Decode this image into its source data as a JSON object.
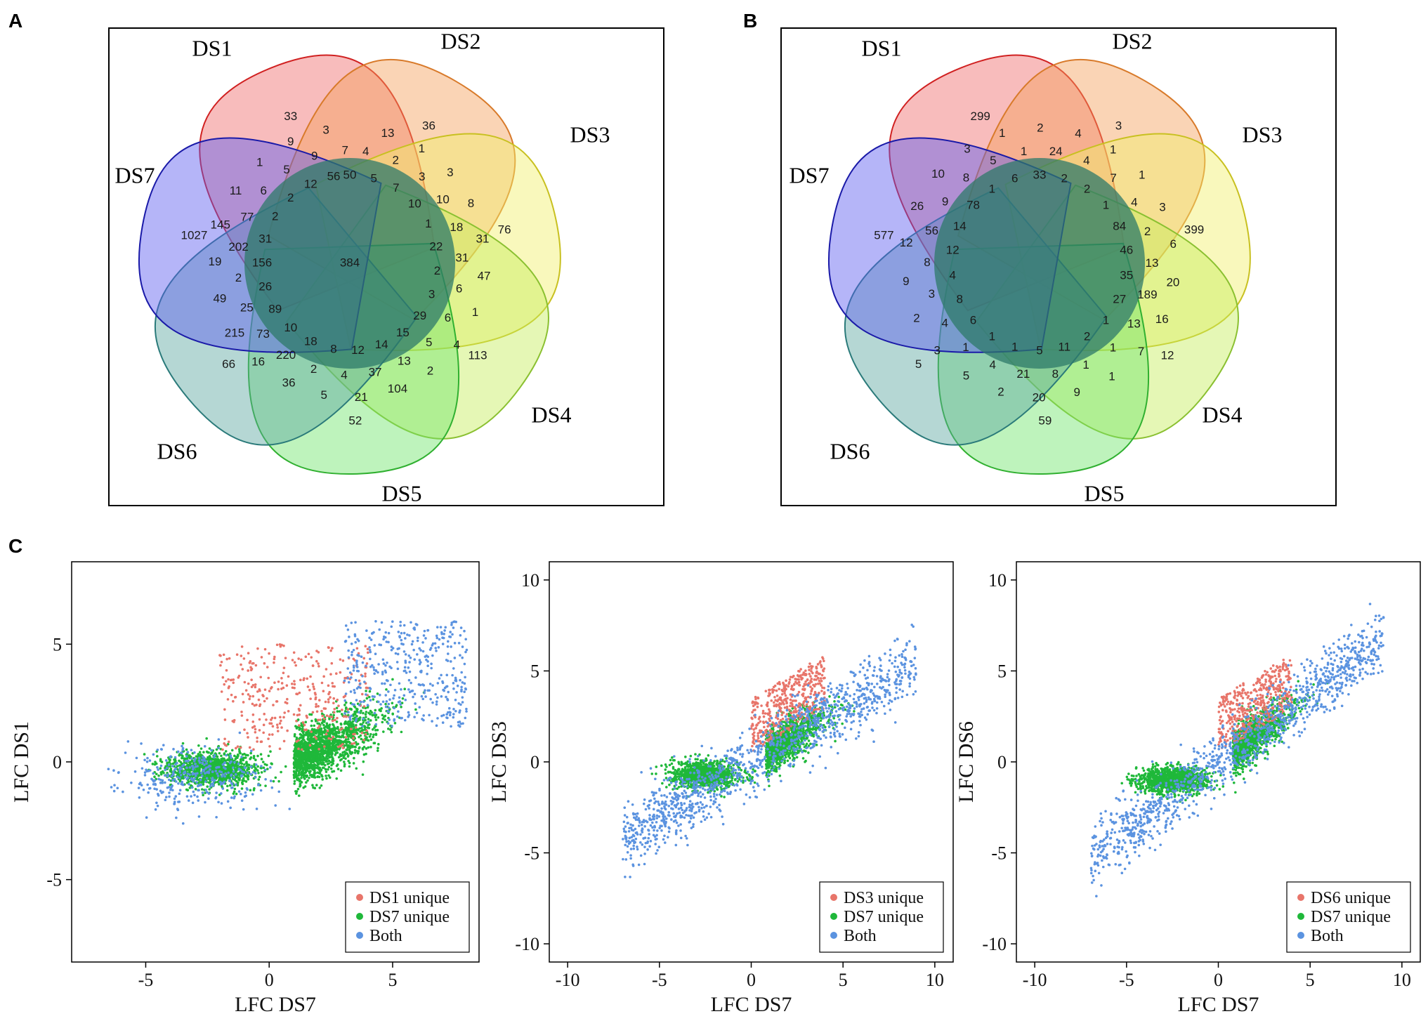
{
  "panels": {
    "a": "A",
    "b": "B",
    "c": "C"
  },
  "colors": {
    "DS1": "#f06a6a",
    "DS2": "#f5a05a",
    "DS3": "#f2f06a",
    "DS4": "#c6ee5a",
    "DS5": "#6ee46a",
    "DS6": "#5aa6a0",
    "DS7": "#5a5af0",
    "dotRed": "#e8756a",
    "dotGreen": "#1fb83a",
    "dotBlue": "#5b93e0"
  },
  "venn": [
    {
      "set_labels": [
        "DS1",
        "DS2",
        "DS3",
        "DS4",
        "DS5",
        "DS6",
        "DS7"
      ],
      "center": "384",
      "unique": [
        "33",
        "36",
        "76",
        "113",
        "52",
        "66",
        "1027"
      ],
      "inner": [
        "50",
        "4",
        "13",
        "5",
        "2",
        "1",
        "7",
        "3",
        "3",
        "10",
        "10",
        "8",
        "1",
        "18",
        "31",
        "22",
        "31",
        "47",
        "2",
        "6",
        "1",
        "3",
        "6",
        "4",
        "29",
        "5",
        "2",
        "15",
        "13",
        "104",
        "14",
        "37",
        "21",
        "12",
        "4",
        "5",
        "8",
        "2",
        "36",
        "18",
        "220",
        "16",
        "10",
        "73",
        "215",
        "89",
        "25",
        "49",
        "26",
        "2",
        "19",
        "156",
        "202",
        "145",
        "31",
        "77",
        "11",
        "2",
        "6",
        "1",
        "2",
        "5",
        "9",
        "12",
        "9",
        "3",
        "56",
        "7"
      ]
    },
    {
      "set_labels": [
        "DS1",
        "DS2",
        "DS3",
        "DS4",
        "DS5",
        "DS6",
        "DS7"
      ],
      "center": "",
      "unique": [
        "299",
        "3",
        "399",
        "12",
        "59",
        "5",
        "577"
      ],
      "inner": [
        "33",
        "24",
        "4",
        "2",
        "4",
        "1",
        "2",
        "7",
        "1",
        "1",
        "4",
        "3",
        "84",
        "2",
        "6",
        "46",
        "13",
        "20",
        "35",
        "189",
        "16",
        "27",
        "13",
        "7",
        "1",
        "1",
        "1",
        "2",
        "1",
        "9",
        "11",
        "8",
        "20",
        "5",
        "21",
        "2",
        "1",
        "4",
        "5",
        "1",
        "1",
        "3",
        "6",
        "4",
        "2",
        "8",
        "3",
        "9",
        "4",
        "8",
        "12",
        "12",
        "56",
        "26",
        "14",
        "9",
        "10",
        "78",
        "8",
        "3",
        "1",
        "5",
        "1",
        "6",
        "1",
        "2"
      ]
    }
  ],
  "chart_data": [
    {
      "type": "scatter",
      "xlabel": "LFC DS7",
      "ylabel": "LFC DS1",
      "xlim": [
        -8,
        8.5
      ],
      "ylim": [
        -8.5,
        8.5
      ],
      "xticks": [
        -5,
        0,
        5
      ],
      "yticks": [
        -5,
        0,
        5
      ],
      "xtick_labels": [
        "-5",
        "0",
        "5"
      ],
      "ytick_labels": [
        "-5",
        "0",
        "5"
      ],
      "legend_position": "bottom-right",
      "series": [
        {
          "name": "DS1 unique",
          "color": "#e8756a",
          "count": 350,
          "description": "points mostly above the main clouds, x in -2..4, y in 0..5"
        },
        {
          "name": "DS7 unique",
          "color": "#1fb83a",
          "count": 2600,
          "description": "two clusters: x≈-2.3,y≈-0.3 and x≈2.5,y≈0.8"
        },
        {
          "name": "Both",
          "color": "#5b93e0",
          "count": 900,
          "description": "around edges of clusters and upper right x 3..8, y 2..6"
        }
      ]
    },
    {
      "type": "scatter",
      "xlabel": "LFC DS7",
      "ylabel": "LFC DS3",
      "xlim": [
        -11,
        11
      ],
      "ylim": [
        -11,
        11
      ],
      "xticks": [
        -10,
        -5,
        0,
        5,
        10
      ],
      "yticks": [
        -10,
        -5,
        0,
        5,
        10
      ],
      "xtick_labels": [
        "-10",
        "-5",
        "0",
        "5",
        "10"
      ],
      "ytick_labels": [
        "-10",
        "-5",
        "0",
        "5",
        "10"
      ],
      "legend_position": "bottom-right",
      "series": [
        {
          "name": "DS3 unique",
          "color": "#e8756a",
          "count": 450,
          "description": "x 0..4, y 0..5 above the right cluster"
        },
        {
          "name": "DS7 unique",
          "color": "#1fb83a",
          "count": 2300,
          "description": "clusters x≈-2.5,y≈-0.7 and x≈2,y≈1"
        },
        {
          "name": "Both",
          "color": "#5b93e0",
          "count": 1100,
          "description": "diagonal band, x -7..8, y -5..7"
        }
      ]
    },
    {
      "type": "scatter",
      "xlabel": "LFC DS7",
      "ylabel": "LFC DS6",
      "xlim": [
        -11,
        11
      ],
      "ylim": [
        -11,
        11
      ],
      "xticks": [
        -10,
        -5,
        0,
        5,
        10
      ],
      "yticks": [
        -10,
        -5,
        0,
        5,
        10
      ],
      "xtick_labels": [
        "-10",
        "-5",
        "0",
        "5",
        "10"
      ],
      "ytick_labels": [
        "-10",
        "-5",
        "0",
        "5",
        "10"
      ],
      "legend_position": "bottom-right",
      "series": [
        {
          "name": "DS6 unique",
          "color": "#e8756a",
          "count": 450,
          "description": "x 0..4, y 0..5"
        },
        {
          "name": "DS7 unique",
          "color": "#1fb83a",
          "count": 2000,
          "description": "clusters x≈-2.5,y≈-1 and x≈1.8,y≈1"
        },
        {
          "name": "Both",
          "color": "#5b93e0",
          "count": 1500,
          "description": "diagonal band, x -7..9, y -5..8"
        }
      ]
    }
  ]
}
